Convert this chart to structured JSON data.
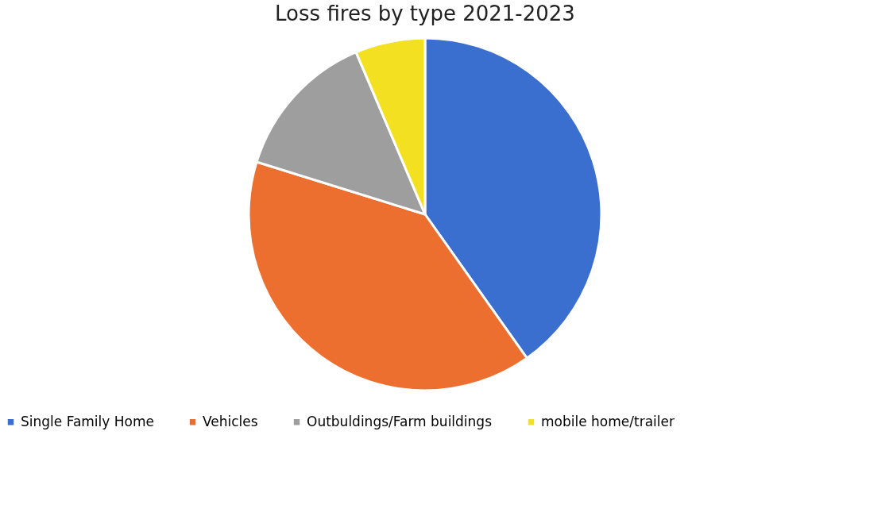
{
  "chart_data": {
    "type": "pie",
    "title": "Loss fires by type 2021-2023",
    "categories": [
      "Single Family Home",
      "Vehicles",
      "Outbuldings/Farm buildings",
      "mobile home/trailer"
    ],
    "values": [
      40.2,
      39.6,
      13.8,
      6.4
    ],
    "colors": [
      "#3b6fcf",
      "#ec6f30",
      "#9e9e9e",
      "#f2e021"
    ],
    "legend": "bottom"
  }
}
